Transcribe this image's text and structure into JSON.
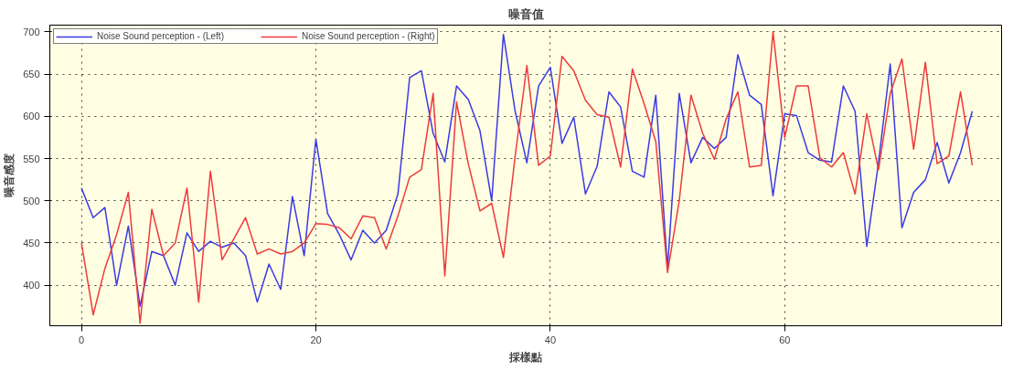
{
  "chart_data": {
    "type": "line",
    "title": "噪音值",
    "xlabel": "採樣點",
    "ylabel": "噪音感度",
    "x": [
      0,
      1,
      2,
      3,
      4,
      5,
      6,
      7,
      8,
      9,
      10,
      11,
      12,
      13,
      14,
      15,
      16,
      17,
      18,
      19,
      20,
      21,
      22,
      23,
      24,
      25,
      26,
      27,
      28,
      29,
      30,
      31,
      32,
      33,
      34,
      35,
      36,
      37,
      38,
      39,
      40,
      41,
      42,
      43,
      44,
      45,
      46,
      47,
      48,
      49,
      50,
      51,
      52,
      53,
      54,
      55,
      56,
      57,
      58,
      59,
      60,
      61,
      62,
      63,
      64,
      65,
      66,
      67,
      68,
      69,
      70,
      71,
      72,
      73,
      74,
      75,
      76
    ],
    "series": [
      {
        "name": "Noise Sound perception - (Left)",
        "color": "#3a3ae6",
        "values": [
          515,
          480,
          492,
          400,
          470,
          375,
          440,
          435,
          400,
          462,
          440,
          452,
          445,
          450,
          435,
          380,
          425,
          395,
          505,
          435,
          573,
          485,
          460,
          430,
          465,
          450,
          465,
          508,
          646,
          654,
          580,
          546,
          636,
          620,
          583,
          500,
          697,
          606,
          545,
          636,
          658,
          568,
          599,
          508,
          541,
          629,
          611,
          535,
          528,
          625,
          420,
          627,
          545,
          575,
          562,
          575,
          673,
          625,
          614,
          506,
          603,
          601,
          557,
          548,
          546,
          636,
          606,
          446,
          545,
          662,
          468,
          510,
          525,
          569,
          521,
          557,
          606
        ]
      },
      {
        "name": "Noise Sound perception - (Right)",
        "color": "#ec3b3b",
        "values": [
          450,
          365,
          420,
          460,
          510,
          355,
          490,
          435,
          450,
          515,
          380,
          535,
          430,
          455,
          480,
          437,
          443,
          437,
          440,
          450,
          473,
          472,
          468,
          455,
          482,
          480,
          443,
          482,
          528,
          537,
          627,
          411,
          617,
          544,
          488,
          497,
          433,
          553,
          660,
          542,
          553,
          671,
          654,
          619,
          602,
          599,
          540,
          656,
          615,
          570,
          415,
          500,
          625,
          580,
          549,
          597,
          629,
          540,
          542,
          700,
          575,
          636,
          636,
          551,
          540,
          557,
          508,
          603,
          537,
          627,
          668,
          561,
          664,
          544,
          553,
          629,
          542
        ]
      }
    ],
    "xlim": [
      -2.7,
      78.5
    ],
    "ylim": [
      352,
      708
    ],
    "xticks": [
      0,
      20,
      40,
      60
    ],
    "yticks": [
      400,
      450,
      500,
      550,
      600,
      650,
      700
    ],
    "grid": true,
    "legend": "top left",
    "line_style": "solid",
    "marker": "none"
  }
}
